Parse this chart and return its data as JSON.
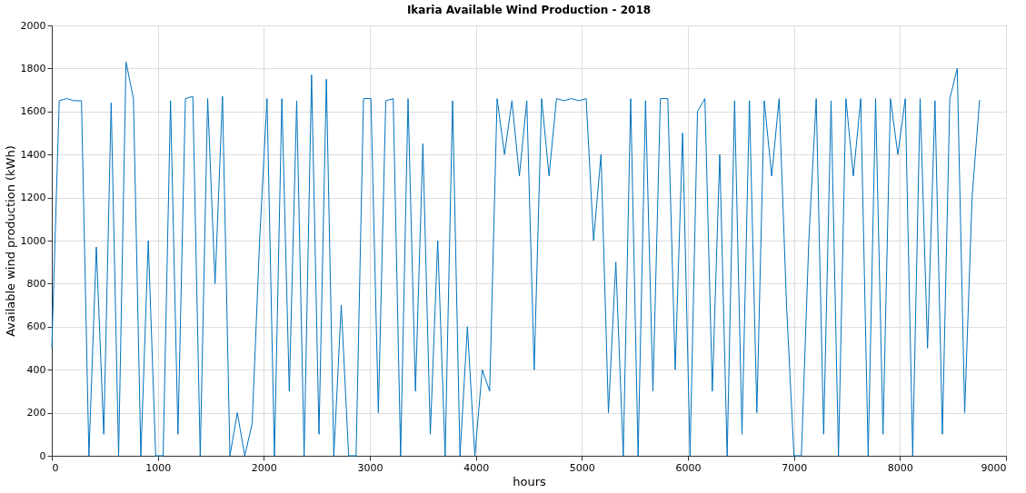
{
  "chart_data": {
    "type": "line",
    "title": "Ikaria Available Wind Production - 2018",
    "xlabel": "hours",
    "ylabel": "Available wind production (kWh)",
    "xlim": [
      0,
      9000
    ],
    "ylim": [
      0,
      2000
    ],
    "xticks": [
      0,
      1000,
      2000,
      3000,
      4000,
      5000,
      6000,
      7000,
      8000,
      9000
    ],
    "yticks": [
      0,
      200,
      400,
      600,
      800,
      1000,
      1200,
      1400,
      1600,
      1800,
      2000
    ],
    "grid": true,
    "line_style": "solid",
    "marker": "none",
    "series": [
      {
        "color": "#0072bd",
        "x": [
          0,
          70,
          140,
          210,
          280,
          350,
          420,
          490,
          560,
          630,
          700,
          770,
          840,
          910,
          980,
          1050,
          1120,
          1190,
          1260,
          1330,
          1400,
          1470,
          1540,
          1610,
          1680,
          1750,
          1820,
          1890,
          1960,
          2030,
          2100,
          2170,
          2240,
          2310,
          2380,
          2450,
          2520,
          2590,
          2660,
          2730,
          2800,
          2870,
          2940,
          3010,
          3080,
          3150,
          3220,
          3290,
          3360,
          3430,
          3500,
          3570,
          3640,
          3710,
          3780,
          3850,
          3920,
          3990,
          4060,
          4130,
          4200,
          4270,
          4340,
          4410,
          4480,
          4550,
          4620,
          4690,
          4760,
          4830,
          4900,
          4970,
          5040,
          5110,
          5180,
          5250,
          5320,
          5390,
          5460,
          5530,
          5600,
          5670,
          5740,
          5810,
          5880,
          5950,
          6020,
          6090,
          6160,
          6230,
          6300,
          6370,
          6440,
          6510,
          6580,
          6650,
          6720,
          6790,
          6860,
          6930,
          7000,
          7070,
          7140,
          7210,
          7280,
          7350,
          7420,
          7490,
          7560,
          7630,
          7700,
          7770,
          7840,
          7910,
          7980,
          8050,
          8120,
          8190,
          8260,
          8330,
          8400,
          8470,
          8540,
          8610,
          8680,
          8750,
          8760
        ],
        "values": [
          500,
          1650,
          1660,
          1650,
          1650,
          0,
          970,
          100,
          1640,
          0,
          1830,
          1660,
          0,
          1000,
          0,
          0,
          1650,
          100,
          1660,
          1670,
          0,
          1660,
          800,
          1670,
          0,
          200,
          0,
          150,
          1000,
          1660,
          0,
          1660,
          300,
          1650,
          0,
          1770,
          100,
          1750,
          0,
          700,
          0,
          0,
          1660,
          1660,
          200,
          1650,
          1660,
          0,
          1660,
          300,
          1450,
          100,
          1000,
          0,
          1650,
          0,
          600,
          0,
          400,
          300,
          1660,
          1400,
          1650,
          1300,
          1650,
          400,
          1660,
          1300,
          1660,
          1650,
          1660,
          1650,
          1660,
          1000,
          1400,
          200,
          900,
          0,
          1660,
          0,
          1650,
          300,
          1660,
          1660,
          400,
          1500,
          0,
          1600,
          1660,
          300,
          1400,
          0,
          1650,
          100,
          1650,
          200,
          1650,
          1300,
          1660,
          700,
          0,
          0,
          1000,
          1660,
          100,
          1650,
          0,
          1660,
          1300,
          1660,
          0,
          1660,
          100,
          1660,
          1400,
          1660,
          0,
          1660,
          500,
          1650,
          100,
          1660,
          1800,
          200,
          1200,
          1650,
          1650
        ]
      }
    ]
  }
}
